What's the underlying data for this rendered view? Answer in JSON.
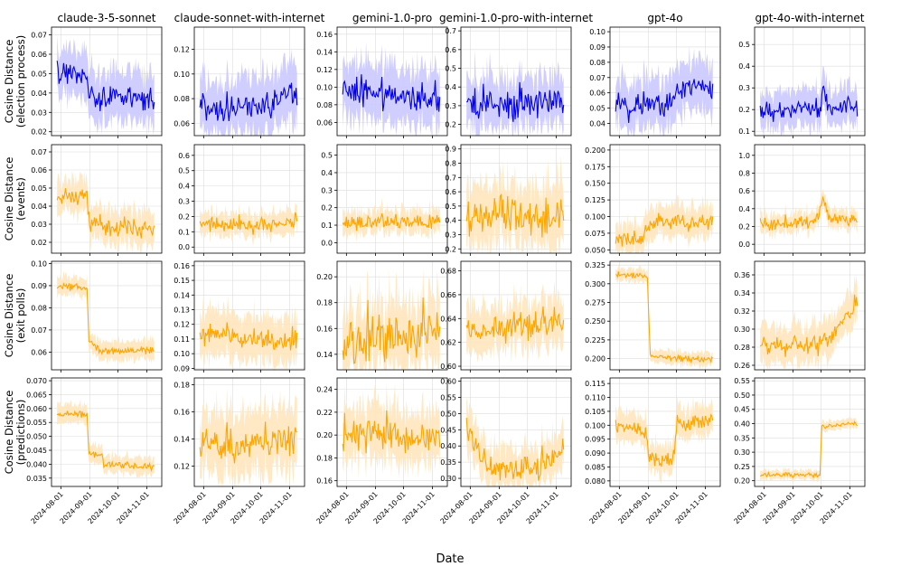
{
  "figure": {
    "xlabel": "Date"
  },
  "colors": {
    "blue_line": "#0000ee",
    "blue_band": "#cbc9ff",
    "orange_line": "#ffa500",
    "orange_band": "#ffe6bd",
    "grid": "#dcdcdc",
    "axis": "#000000"
  },
  "chart_data": {
    "type": "line",
    "columns": [
      "claude-3-5-sonnet",
      "claude-sonnet-with-internet",
      "gemini-1.0-pro",
      "gemini-1.0-pro-with-internet",
      "gpt-4o",
      "gpt-4o-with-internet"
    ],
    "rows": [
      "Cosine Distance (election process)",
      "Cosine Distance (events)",
      "Cosine Distance (exit polls)",
      "Cosine Distance (predictions)"
    ],
    "row_label_lines": [
      [
        "Cosine Distance",
        "(election process)"
      ],
      [
        "Cosine Distance",
        "(events)"
      ],
      [
        "Cosine Distance",
        "(exit polls)"
      ],
      [
        "Cosine Distance",
        "(predictions)"
      ]
    ],
    "x_domain_days": [
      -10,
      108
    ],
    "x_ticks": [
      {
        "day": 0,
        "label": "2024-08-01"
      },
      {
        "day": 31,
        "label": "2024-09-01"
      },
      {
        "day": 61,
        "label": "2024-10-01"
      },
      {
        "day": 92,
        "label": "2024-11-01"
      }
    ],
    "panels": [
      [
        {
          "ylim": [
            0.018,
            0.074
          ],
          "yticks": [
            "0.02",
            "0.03",
            "0.04",
            "0.05",
            "0.06",
            "0.07"
          ],
          "segments": [
            [
              -4,
              0.05
            ],
            [
              28,
              0.05
            ],
            [
              30,
              0.038
            ],
            [
              100,
              0.037
            ]
          ],
          "noise": 0.003,
          "band": 0.012,
          "color": "blue"
        },
        {
          "ylim": [
            0.05,
            0.138
          ],
          "yticks": [
            "0.06",
            "0.08",
            "0.10",
            "0.12"
          ],
          "segments": [
            [
              -4,
              0.075
            ],
            [
              20,
              0.072
            ],
            [
              50,
              0.072
            ],
            [
              85,
              0.08
            ],
            [
              100,
              0.088
            ]
          ],
          "noise": 0.006,
          "band": 0.022,
          "color": "blue"
        },
        {
          "ylim": [
            0.045,
            0.168
          ],
          "yticks": [
            "0.06",
            "0.08",
            "0.10",
            "0.12",
            "0.14",
            "0.16"
          ],
          "segments": [
            [
              -4,
              0.1
            ],
            [
              50,
              0.092
            ],
            [
              100,
              0.088
            ]
          ],
          "noise": 0.009,
          "band": 0.03,
          "color": "blue"
        },
        {
          "ylim": [
            0.14,
            0.72
          ],
          "yticks": [
            "0.2",
            "0.3",
            "0.4",
            "0.5",
            "0.6",
            "0.7"
          ],
          "segments": [
            [
              -4,
              0.3
            ],
            [
              100,
              0.32
            ]
          ],
          "noise": 0.04,
          "band": 0.13,
          "color": "blue",
          "spikes": 0.1
        },
        {
          "ylim": [
            0.032,
            0.103
          ],
          "yticks": [
            "0.04",
            "0.05",
            "0.06",
            "0.07",
            "0.08",
            "0.09",
            "0.10"
          ],
          "segments": [
            [
              -4,
              0.056
            ],
            [
              10,
              0.05
            ],
            [
              28,
              0.053
            ],
            [
              50,
              0.052
            ],
            [
              70,
              0.065
            ],
            [
              100,
              0.063
            ]
          ],
          "noise": 0.004,
          "band": 0.015,
          "color": "blue"
        },
        {
          "ylim": [
            0.08,
            0.58
          ],
          "yticks": [
            "0.1",
            "0.2",
            "0.3",
            "0.4",
            "0.5"
          ],
          "segments": [
            [
              -4,
              0.19
            ],
            [
              60,
              0.2
            ],
            [
              63,
              0.27
            ],
            [
              70,
              0.22
            ],
            [
              100,
              0.2
            ]
          ],
          "noise": 0.02,
          "band": 0.08,
          "color": "blue",
          "spikes": 0.05
        }
      ],
      [
        {
          "ylim": [
            0.014,
            0.074
          ],
          "yticks": [
            "0.02",
            "0.03",
            "0.04",
            "0.05",
            "0.06",
            "0.07"
          ],
          "segments": [
            [
              -4,
              0.045
            ],
            [
              28,
              0.047
            ],
            [
              30,
              0.032
            ],
            [
              50,
              0.028
            ],
            [
              100,
              0.028
            ]
          ],
          "noise": 0.0025,
          "band": 0.009,
          "color": "orange"
        },
        {
          "ylim": [
            -0.04,
            0.67
          ],
          "yticks": [
            "0.0",
            "0.1",
            "0.2",
            "0.3",
            "0.4",
            "0.5",
            "0.6"
          ],
          "segments": [
            [
              -4,
              0.15
            ],
            [
              60,
              0.14
            ],
            [
              100,
              0.17
            ]
          ],
          "noise": 0.025,
          "band": 0.07,
          "color": "orange",
          "spikes": 0.05
        },
        {
          "ylim": [
            -0.06,
            0.56
          ],
          "yticks": [
            "0.0",
            "0.1",
            "0.2",
            "0.3",
            "0.4",
            "0.5"
          ],
          "segments": [
            [
              -4,
              0.11
            ],
            [
              100,
              0.12
            ]
          ],
          "noise": 0.02,
          "band": 0.06,
          "color": "orange",
          "spikes": 0.05
        },
        {
          "ylim": [
            0.17,
            0.93
          ],
          "yticks": [
            "0.2",
            "0.3",
            "0.4",
            "0.5",
            "0.6",
            "0.7",
            "0.8",
            "0.9"
          ],
          "segments": [
            [
              -4,
              0.42
            ],
            [
              100,
              0.45
            ]
          ],
          "noise": 0.07,
          "band": 0.2,
          "color": "orange",
          "spikes": 0.08
        },
        {
          "ylim": [
            0.045,
            0.208
          ],
          "yticks": [
            "0.050",
            "0.075",
            "0.100",
            "0.125",
            "0.150",
            "0.175",
            "0.200"
          ],
          "segments": [
            [
              -4,
              0.065
            ],
            [
              25,
              0.065
            ],
            [
              30,
              0.08
            ],
            [
              40,
              0.092
            ],
            [
              60,
              0.095
            ],
            [
              100,
              0.09
            ]
          ],
          "noise": 0.006,
          "band": 0.022,
          "color": "orange",
          "spikes": 0.015
        },
        {
          "ylim": [
            -0.1,
            1.12
          ],
          "yticks": [
            "0.0",
            "0.2",
            "0.4",
            "0.6",
            "0.8",
            "1.0"
          ],
          "segments": [
            [
              -4,
              0.22
            ],
            [
              55,
              0.24
            ],
            [
              63,
              0.5
            ],
            [
              70,
              0.3
            ],
            [
              100,
              0.27
            ]
          ],
          "noise": 0.03,
          "band": 0.1,
          "color": "orange",
          "spikes": 0.06
        }
      ],
      [
        {
          "ylim": [
            0.052,
            0.101
          ],
          "yticks": [
            "0.06",
            "0.07",
            "0.08",
            "0.09",
            "0.10"
          ],
          "segments": [
            [
              -4,
              0.09
            ],
            [
              28,
              0.089
            ],
            [
              30,
              0.065
            ],
            [
              36,
              0.063
            ],
            [
              42,
              0.06
            ],
            [
              100,
              0.061
            ]
          ],
          "noise": 0.0008,
          "band": 0.004,
          "color": "orange"
        },
        {
          "ylim": [
            0.089,
            0.163
          ],
          "yticks": [
            "0.09",
            "0.10",
            "0.11",
            "0.12",
            "0.13",
            "0.14",
            "0.15",
            "0.16"
          ],
          "segments": [
            [
              -4,
              0.115
            ],
            [
              40,
              0.11
            ],
            [
              90,
              0.108
            ],
            [
              100,
              0.115
            ]
          ],
          "noise": 0.004,
          "band": 0.015,
          "color": "orange"
        },
        {
          "ylim": [
            0.128,
            0.212
          ],
          "yticks": [
            "0.14",
            "0.16",
            "0.18",
            "0.20"
          ],
          "segments": [
            [
              -4,
              0.15
            ],
            [
              100,
              0.16
            ]
          ],
          "noise": 0.01,
          "band": 0.025,
          "color": "orange"
        },
        {
          "ylim": [
            0.597,
            0.688
          ],
          "yticks": [
            "0.60",
            "0.62",
            "0.64",
            "0.66",
            "0.68"
          ],
          "segments": [
            [
              -4,
              0.63
            ],
            [
              100,
              0.636
            ]
          ],
          "noise": 0.006,
          "band": 0.018,
          "color": "orange"
        },
        {
          "ylim": [
            0.185,
            0.33
          ],
          "yticks": [
            "0.200",
            "0.225",
            "0.250",
            "0.275",
            "0.300",
            "0.325"
          ],
          "segments": [
            [
              -4,
              0.312
            ],
            [
              30,
              0.31
            ],
            [
              33,
              0.205
            ],
            [
              60,
              0.2
            ],
            [
              100,
              0.199
            ]
          ],
          "noise": 0.002,
          "band": 0.008,
          "color": "orange"
        },
        {
          "ylim": [
            0.255,
            0.375
          ],
          "yticks": [
            "0.26",
            "0.28",
            "0.30",
            "0.32",
            "0.34",
            "0.36"
          ],
          "segments": [
            [
              -4,
              0.283
            ],
            [
              50,
              0.28
            ],
            [
              70,
              0.29
            ],
            [
              100,
              0.33
            ]
          ],
          "noise": 0.005,
          "band": 0.02,
          "color": "orange"
        }
      ],
      [
        {
          "ylim": [
            0.032,
            0.071
          ],
          "yticks": [
            "0.035",
            "0.040",
            "0.045",
            "0.050",
            "0.055",
            "0.060",
            "0.065",
            "0.070"
          ],
          "segments": [
            [
              -4,
              0.058
            ],
            [
              28,
              0.058
            ],
            [
              30,
              0.044
            ],
            [
              44,
              0.043
            ],
            [
              46,
              0.04
            ],
            [
              100,
              0.039
            ]
          ],
          "noise": 0.0006,
          "band": 0.003,
          "color": "orange"
        },
        {
          "ylim": [
            0.105,
            0.185
          ],
          "yticks": [
            "0.12",
            "0.14",
            "0.16",
            "0.18"
          ],
          "segments": [
            [
              -4,
              0.14
            ],
            [
              50,
              0.135
            ],
            [
              100,
              0.14
            ]
          ],
          "noise": 0.006,
          "band": 0.022,
          "color": "orange"
        },
        {
          "ylim": [
            0.155,
            0.25
          ],
          "yticks": [
            "0.16",
            "0.18",
            "0.20",
            "0.22",
            "0.24"
          ],
          "segments": [
            [
              -4,
              0.205
            ],
            [
              50,
              0.2
            ],
            [
              100,
              0.196
            ]
          ],
          "noise": 0.008,
          "band": 0.022,
          "color": "orange"
        },
        {
          "ylim": [
            0.275,
            0.61
          ],
          "yticks": [
            "0.30",
            "0.35",
            "0.40",
            "0.45",
            "0.50",
            "0.55",
            "0.60"
          ],
          "segments": [
            [
              -4,
              0.45
            ],
            [
              12,
              0.35
            ],
            [
              40,
              0.33
            ],
            [
              75,
              0.33
            ],
            [
              100,
              0.39
            ]
          ],
          "noise": 0.02,
          "band": 0.06,
          "color": "orange",
          "spikes": 0.06
        },
        {
          "ylim": [
            0.078,
            0.117
          ],
          "yticks": [
            "0.080",
            "0.085",
            "0.090",
            "0.095",
            "0.100",
            "0.105",
            "0.110",
            "0.115"
          ],
          "segments": [
            [
              -4,
              0.1
            ],
            [
              28,
              0.098
            ],
            [
              32,
              0.088
            ],
            [
              58,
              0.088
            ],
            [
              62,
              0.1
            ],
            [
              100,
              0.102
            ]
          ],
          "noise": 0.0015,
          "band": 0.005,
          "color": "orange"
        },
        {
          "ylim": [
            0.18,
            0.56
          ],
          "yticks": [
            "0.20",
            "0.25",
            "0.30",
            "0.35",
            "0.40",
            "0.45",
            "0.50",
            "0.55"
          ],
          "segments": [
            [
              -4,
              0.222
            ],
            [
              60,
              0.22
            ],
            [
              62,
              0.39
            ],
            [
              100,
              0.4
            ]
          ],
          "noise": 0.004,
          "band": 0.015,
          "color": "orange"
        }
      ]
    ]
  }
}
